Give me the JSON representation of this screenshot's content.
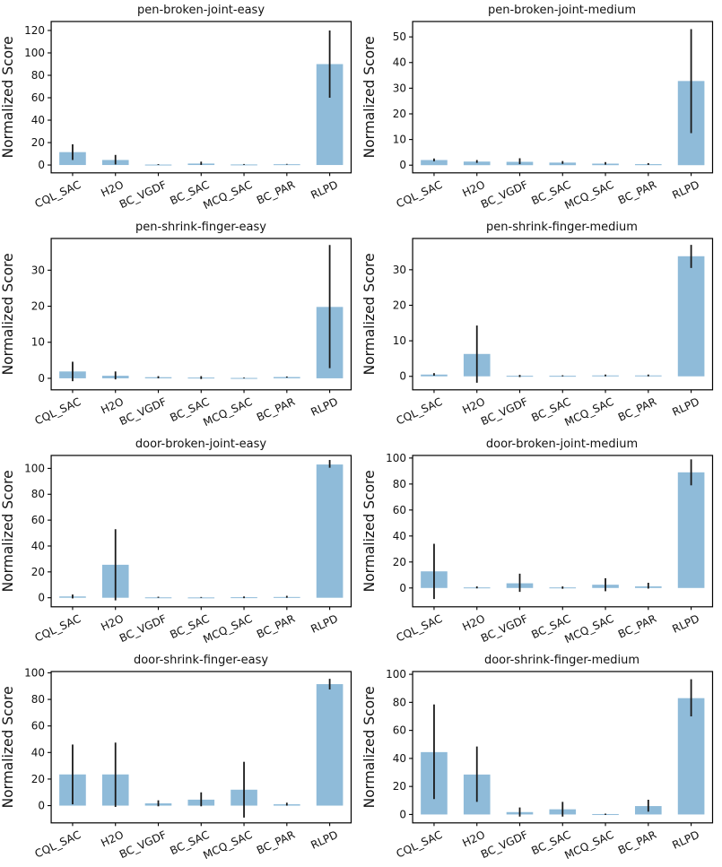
{
  "figure": {
    "ylabel": "Normalized Score",
    "bar_color": "#8fbbd9",
    "error_color": "#1a1a1a",
    "axis_color": "#000000",
    "background": "#ffffff",
    "categories": [
      "CQL_SAC",
      "H2O",
      "BC_VGDF",
      "BC_SAC",
      "MCQ_SAC",
      "BC_PAR",
      "RLPD"
    ],
    "layout": "4 rows x 2 columns of bar charts with error bars"
  },
  "chart_data": [
    {
      "type": "bar",
      "title": "pen-broken-joint-easy",
      "ylabel": "Normalized Score",
      "categories": [
        "CQL_SAC",
        "H2O",
        "BC_VGDF",
        "BC_SAC",
        "MCQ_SAC",
        "BC_PAR",
        "RLPD"
      ],
      "values": [
        11.5,
        4.5,
        0.4,
        1.3,
        0.5,
        0.7,
        90
      ],
      "err_low": [
        4.5,
        0.5,
        0.1,
        0.1,
        0.2,
        0.4,
        60
      ],
      "err_high": [
        18.5,
        9,
        0.8,
        3,
        0.9,
        1,
        120
      ],
      "yticks": [
        0,
        20,
        40,
        60,
        80,
        100,
        120
      ],
      "ylim": [
        -7,
        128
      ],
      "grid": false,
      "legend": "none"
    },
    {
      "type": "bar",
      "title": "pen-broken-joint-medium",
      "ylabel": "Normalized Score",
      "categories": [
        "CQL_SAC",
        "H2O",
        "BC_VGDF",
        "BC_SAC",
        "MCQ_SAC",
        "BC_PAR",
        "RLPD"
      ],
      "values": [
        2.0,
        1.4,
        1.3,
        1.0,
        0.6,
        0.4,
        32.8
      ],
      "err_low": [
        1.5,
        0.9,
        0.4,
        0.5,
        0.2,
        0.1,
        12.5
      ],
      "err_high": [
        2.6,
        2.0,
        2.7,
        1.6,
        1.2,
        0.8,
        53
      ],
      "yticks": [
        0,
        10,
        20,
        30,
        40,
        50
      ],
      "ylim": [
        -3,
        56
      ],
      "grid": false,
      "legend": "none"
    },
    {
      "type": "bar",
      "title": "pen-shrink-finger-easy",
      "ylabel": "Normalized Score",
      "categories": [
        "CQL_SAC",
        "H2O",
        "BC_VGDF",
        "BC_SAC",
        "MCQ_SAC",
        "BC_PAR",
        "RLPD"
      ],
      "values": [
        1.9,
        0.7,
        0.3,
        0.2,
        0.1,
        0.35,
        19.8
      ],
      "err_low": [
        -0.8,
        -0.3,
        0,
        -0.2,
        0,
        0.2,
        2.8
      ],
      "err_high": [
        4.6,
        1.9,
        0.6,
        0.6,
        0.2,
        0.5,
        37
      ],
      "yticks": [
        0,
        10,
        20,
        30
      ],
      "ylim": [
        -3.2,
        38.8
      ],
      "grid": false,
      "legend": "none"
    },
    {
      "type": "bar",
      "title": "pen-shrink-finger-medium",
      "ylabel": "Normalized Score",
      "categories": [
        "CQL_SAC",
        "H2O",
        "BC_VGDF",
        "BC_SAC",
        "MCQ_SAC",
        "BC_PAR",
        "RLPD"
      ],
      "values": [
        0.5,
        6.3,
        0.15,
        0.15,
        0.25,
        0.25,
        33.8
      ],
      "err_low": [
        0.2,
        -1.8,
        -0.2,
        0,
        0,
        0,
        30.5
      ],
      "err_high": [
        0.9,
        14.3,
        0.4,
        0.3,
        0.5,
        0.5,
        37
      ],
      "yticks": [
        0,
        10,
        20,
        30
      ],
      "ylim": [
        -3.8,
        38.8
      ],
      "grid": false,
      "legend": "none"
    },
    {
      "type": "bar",
      "title": "door-broken-joint-easy",
      "ylabel": "Normalized Score",
      "categories": [
        "CQL_SAC",
        "H2O",
        "BC_VGDF",
        "BC_SAC",
        "MCQ_SAC",
        "BC_PAR",
        "RLPD"
      ],
      "values": [
        1.0,
        25.5,
        0.3,
        0.25,
        0.4,
        0.6,
        103
      ],
      "err_low": [
        -0.5,
        -2,
        0,
        0,
        -0.3,
        0,
        100.5
      ],
      "err_high": [
        2.5,
        53,
        0.8,
        0.6,
        1,
        1.5,
        106.5
      ],
      "yticks": [
        0,
        20,
        40,
        60,
        80,
        100
      ],
      "ylim": [
        -7,
        110
      ],
      "grid": false,
      "legend": "none"
    },
    {
      "type": "bar",
      "title": "door-broken-joint-medium",
      "ylabel": "Normalized Score",
      "categories": [
        "CQL_SAC",
        "H2O",
        "BC_VGDF",
        "BC_SAC",
        "MCQ_SAC",
        "BC_PAR",
        "RLPD"
      ],
      "values": [
        12.8,
        0.4,
        3.6,
        0.4,
        2.5,
        1.2,
        89
      ],
      "err_low": [
        -8.5,
        -0.3,
        -3,
        -0.6,
        -2.5,
        -0.5,
        79
      ],
      "err_high": [
        34,
        1.2,
        11,
        1.2,
        7.5,
        4,
        99
      ],
      "yticks": [
        0,
        20,
        40,
        60,
        80,
        100
      ],
      "ylim": [
        -14.5,
        102
      ],
      "grid": false,
      "legend": "none"
    },
    {
      "type": "bar",
      "title": "door-shrink-finger-easy",
      "ylabel": "Normalized Score",
      "categories": [
        "CQL_SAC",
        "H2O",
        "BC_VGDF",
        "BC_SAC",
        "MCQ_SAC",
        "BC_PAR",
        "RLPD"
      ],
      "values": [
        23.5,
        23.5,
        1.7,
        4.5,
        12,
        1,
        91.5
      ],
      "err_low": [
        1,
        -1,
        -0.5,
        -0.5,
        -9,
        0,
        87.5
      ],
      "err_high": [
        46,
        47.5,
        4,
        10,
        33,
        2.2,
        95.5
      ],
      "yticks": [
        0,
        20,
        40,
        60,
        80,
        100
      ],
      "ylim": [
        -13,
        101
      ],
      "grid": false,
      "legend": "none"
    },
    {
      "type": "bar",
      "title": "door-shrink-finger-medium",
      "ylabel": "Normalized Score",
      "categories": [
        "CQL_SAC",
        "H2O",
        "BC_VGDF",
        "BC_SAC",
        "MCQ_SAC",
        "BC_PAR",
        "RLPD"
      ],
      "values": [
        44.5,
        28.5,
        1.7,
        3.7,
        0.3,
        6,
        83
      ],
      "err_low": [
        11,
        9,
        -1.5,
        -1.5,
        -0.3,
        2,
        70
      ],
      "err_high": [
        78.5,
        48.5,
        5,
        9,
        0.6,
        10.5,
        96.5
      ],
      "yticks": [
        0,
        20,
        40,
        60,
        80,
        100
      ],
      "ylim": [
        -6,
        102
      ],
      "grid": false,
      "legend": "none"
    }
  ]
}
